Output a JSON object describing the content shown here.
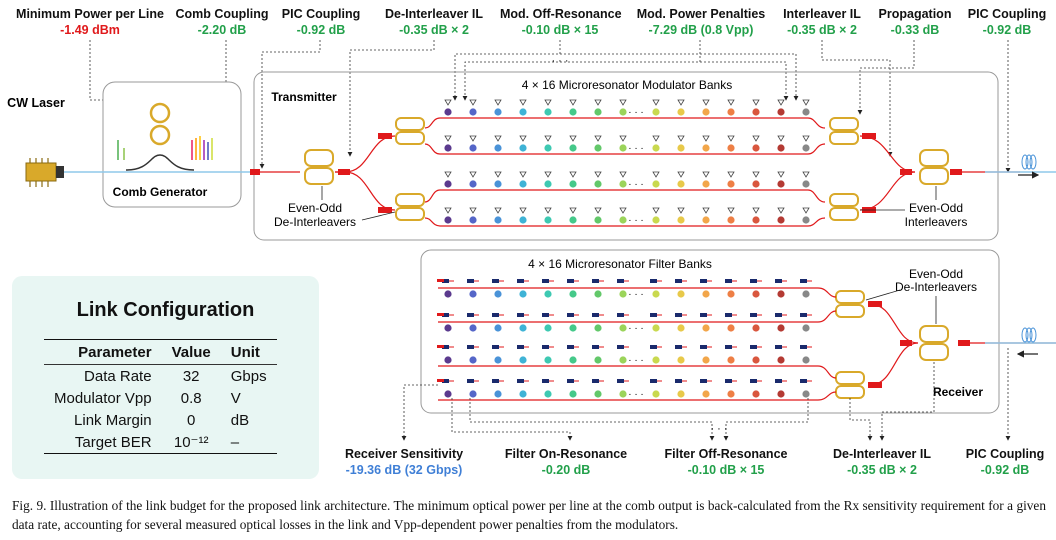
{
  "top_labels": [
    {
      "title": "Minimum Power per Line",
      "value": "-1.49 dBm",
      "color": "red"
    },
    {
      "title": "Comb Coupling",
      "value": "-2.20 dB",
      "color": "green"
    },
    {
      "title": "PIC Coupling",
      "value": "-0.92 dB",
      "color": "green"
    },
    {
      "title": "De-Interleaver IL",
      "value": "-0.35 dB × 2",
      "color": "green"
    },
    {
      "title": "Mod. Off-Resonance",
      "value": "-0.10 dB × 15",
      "color": "green"
    },
    {
      "title": "Mod. Power Penalties",
      "value": "-7.29 dB (0.8 Vpp)",
      "color": "green"
    },
    {
      "title": "Interleaver IL",
      "value": "-0.35 dB × 2",
      "color": "green"
    },
    {
      "title": "Propagation",
      "value": "-0.33 dB",
      "color": "green"
    },
    {
      "title": "PIC Coupling",
      "value": "-0.92 dB",
      "color": "green"
    }
  ],
  "bottom_labels": [
    {
      "title": "Receiver Sensitivity",
      "value": "-19.36 dB (32 Gbps)",
      "color": "blue"
    },
    {
      "title": "Filter On-Resonance",
      "value": "-0.20 dB",
      "color": "green"
    },
    {
      "title": "Filter Off-Resonance",
      "value": "-0.10 dB × 15",
      "color": "green"
    },
    {
      "title": "De-Interleaver IL",
      "value": "-0.35 dB × 2",
      "color": "green"
    },
    {
      "title": "PIC Coupling",
      "value": "-0.92 dB",
      "color": "green"
    }
  ],
  "diagram": {
    "cw_laser": "CW Laser",
    "comb_generator": "Comb Generator",
    "transmitter": "Transmitter",
    "receiver": "Receiver",
    "mod_banks": "4 × 16 Microresonator Modulator Banks",
    "filter_banks": "4 × 16 Microresonator Filter Banks",
    "tx_deint_line1": "Even-Odd",
    "tx_deint_line2": "De-Interleavers",
    "tx_int_line1": "Even-Odd",
    "tx_int_line2": "Interleavers",
    "rx_deint_line1": "Even-Odd",
    "rx_deint_line2": "De-Interleavers",
    "ellipsis": "· · ·"
  },
  "ring_colors": [
    "#5b3a8e",
    "#5566c8",
    "#4a93d8",
    "#3fb3d6",
    "#3ec9b2",
    "#45c98a",
    "#63c86a",
    "#9bd45a",
    "#c9d94f",
    "#e8c94a",
    "#f2a64a",
    "#ee7f45",
    "#d9573e",
    "#b43a33"
  ],
  "link_config": {
    "title": "Link Configuration",
    "headers": [
      "Parameter",
      "Value",
      "Unit"
    ],
    "rows": [
      [
        "Data Rate",
        "32",
        "Gbps"
      ],
      [
        "Modulator Vpp",
        "0.8",
        "V"
      ],
      [
        "Link Margin",
        "0",
        "dB"
      ],
      [
        "Target BER",
        "10⁻¹²",
        "–"
      ]
    ]
  },
  "caption": "Fig. 9.  Illustration of the link budget for the proposed link architecture. The minimum optical power per line at the comb output is back-calculated from the Rx sensitivity requirement for a given data rate, accounting for several measured optical losses in the link and Vpp-dependent power penalties from the modulators."
}
